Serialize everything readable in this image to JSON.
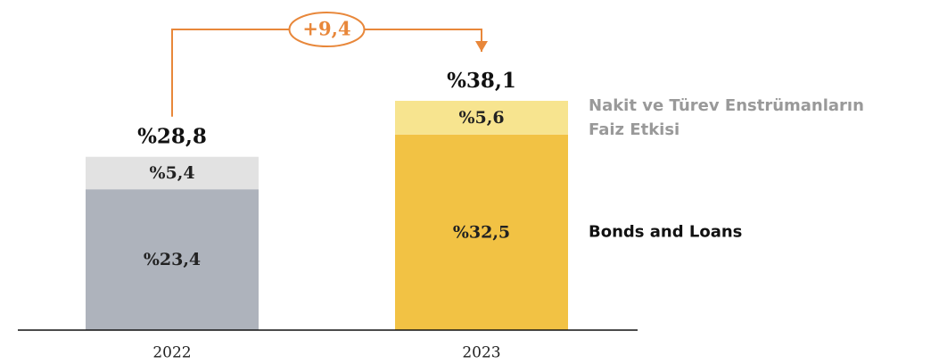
{
  "chart_data": {
    "type": "stacked_bar",
    "categories": [
      "2022",
      "2023"
    ],
    "series": [
      {
        "name": "Bonds and Loans",
        "colors": [
          "#aeb3bc",
          "#f2c244"
        ],
        "legend_color": "#111111",
        "values": [
          23.4,
          32.5
        ],
        "value_labels": [
          "%23,4",
          "%32,5"
        ]
      },
      {
        "name": "Nakit ve Türev Enstrümanların Faiz Etkisi",
        "colors": [
          "#e2e2e2",
          "#f7e48f"
        ],
        "legend_color": "#999999",
        "values": [
          5.4,
          5.6
        ],
        "value_labels": [
          "%5,4",
          "%5,6"
        ]
      }
    ],
    "totals": [
      28.8,
      38.1
    ],
    "total_labels": [
      "%28,8",
      "%38,1"
    ],
    "change": {
      "value": 9.4,
      "label": "+9,4",
      "color": "#e8873a"
    }
  }
}
